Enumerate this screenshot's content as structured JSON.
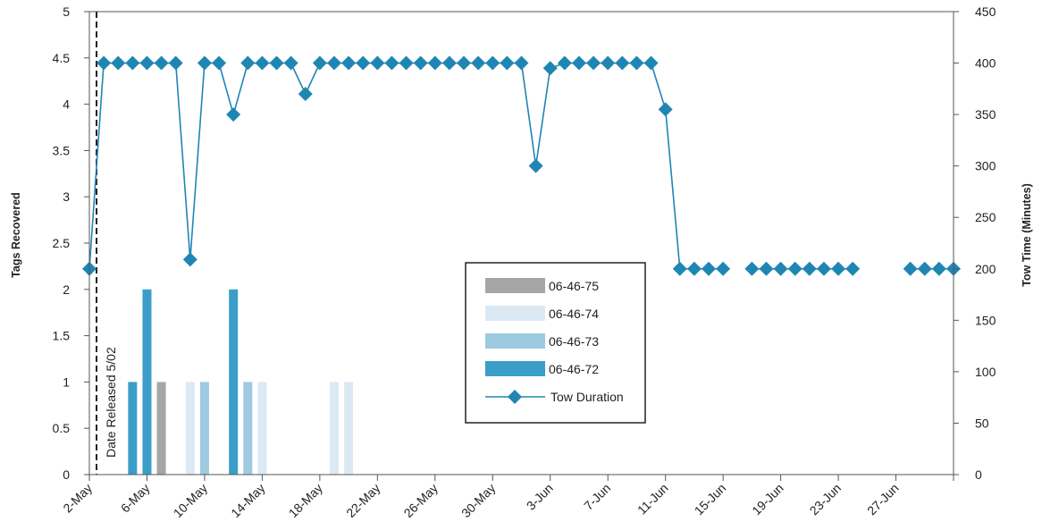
{
  "chart_data": {
    "type": "bar+line",
    "title": "",
    "ylabel_left": "Tags Recovered",
    "ylabel_right": "Tow Time (Minutes)",
    "ylim_left": [
      0,
      5
    ],
    "ylim_right": [
      0,
      450
    ],
    "yticks_left": [
      "0",
      "0.5",
      "1",
      "1.5",
      "2",
      "2.5",
      "3",
      "3.5",
      "4",
      "4.5",
      "5"
    ],
    "yticks_right": [
      "0",
      "50",
      "100",
      "150",
      "200",
      "250",
      "300",
      "350",
      "400",
      "450"
    ],
    "xlim": [
      "2-May",
      "1-Jul"
    ],
    "xticks": [
      "2-May",
      "6-May",
      "10-May",
      "14-May",
      "18-May",
      "22-May",
      "26-May",
      "30-May",
      "3-Jun",
      "7-Jun",
      "11-Jun",
      "15-Jun",
      "19-Jun",
      "23-Jun",
      "27-Jun"
    ],
    "annotation": {
      "text": "Date Released 5/02",
      "x": "2-May"
    },
    "legend_position": "center",
    "series": [
      {
        "name": "06-46-75",
        "type": "bar",
        "color": "#a6a6a6",
        "points": [
          {
            "x": "7-May",
            "y": 1
          }
        ]
      },
      {
        "name": "06-46-74",
        "type": "bar",
        "color": "#dbe9f5",
        "points": [
          {
            "x": "9-May",
            "y": 1
          },
          {
            "x": "14-May",
            "y": 1
          },
          {
            "x": "19-May",
            "y": 1
          },
          {
            "x": "20-May",
            "y": 1
          }
        ]
      },
      {
        "name": "06-46-73",
        "type": "bar",
        "color": "#9ecae1",
        "points": [
          {
            "x": "10-May",
            "y": 1
          },
          {
            "x": "13-May",
            "y": 1
          }
        ]
      },
      {
        "name": "06-46-72",
        "type": "bar",
        "color": "#3a9ec8",
        "points": [
          {
            "x": "5-May",
            "y": 1
          },
          {
            "x": "6-May",
            "y": 2
          },
          {
            "x": "12-May",
            "y": 2
          }
        ]
      },
      {
        "name": "Tow Duration",
        "type": "line",
        "axis": "right",
        "color": "#1f86b4",
        "points": [
          {
            "x": "2-May",
            "y": 200
          },
          {
            "x": "3-May",
            "y": 400
          },
          {
            "x": "4-May",
            "y": 400
          },
          {
            "x": "5-May",
            "y": 400
          },
          {
            "x": "6-May",
            "y": 400
          },
          {
            "x": "7-May",
            "y": 400
          },
          {
            "x": "8-May",
            "y": 400
          },
          {
            "x": "9-May",
            "y": 209
          },
          {
            "x": "10-May",
            "y": 400
          },
          {
            "x": "11-May",
            "y": 400
          },
          {
            "x": "12-May",
            "y": 350
          },
          {
            "x": "13-May",
            "y": 400
          },
          {
            "x": "14-May",
            "y": 400
          },
          {
            "x": "15-May",
            "y": 400
          },
          {
            "x": "16-May",
            "y": 400
          },
          {
            "x": "17-May",
            "y": 370
          },
          {
            "x": "18-May",
            "y": 400
          },
          {
            "x": "19-May",
            "y": 400
          },
          {
            "x": "20-May",
            "y": 400
          },
          {
            "x": "21-May",
            "y": 400
          },
          {
            "x": "22-May",
            "y": 400
          },
          {
            "x": "23-May",
            "y": 400
          },
          {
            "x": "24-May",
            "y": 400
          },
          {
            "x": "25-May",
            "y": 400
          },
          {
            "x": "26-May",
            "y": 400
          },
          {
            "x": "27-May",
            "y": 400
          },
          {
            "x": "28-May",
            "y": 400
          },
          {
            "x": "29-May",
            "y": 400
          },
          {
            "x": "30-May",
            "y": 400
          },
          {
            "x": "31-May",
            "y": 400
          },
          {
            "x": "1-Jun",
            "y": 400
          },
          {
            "x": "2-Jun",
            "y": 300
          },
          {
            "x": "3-Jun",
            "y": 395
          },
          {
            "x": "4-Jun",
            "y": 400
          },
          {
            "x": "5-Jun",
            "y": 400
          },
          {
            "x": "6-Jun",
            "y": 400
          },
          {
            "x": "7-Jun",
            "y": 400
          },
          {
            "x": "8-Jun",
            "y": 400
          },
          {
            "x": "9-Jun",
            "y": 400
          },
          {
            "x": "10-Jun",
            "y": 400
          },
          {
            "x": "11-Jun",
            "y": 355
          },
          {
            "x": "12-Jun",
            "y": 200
          },
          {
            "x": "13-Jun",
            "y": 200
          },
          {
            "x": "14-Jun",
            "y": 200
          },
          {
            "x": "15-Jun",
            "y": 200
          },
          {
            "x": "17-Jun",
            "y": 200
          },
          {
            "x": "18-Jun",
            "y": 200
          },
          {
            "x": "19-Jun",
            "y": 200
          },
          {
            "x": "20-Jun",
            "y": 200
          },
          {
            "x": "21-Jun",
            "y": 200
          },
          {
            "x": "22-Jun",
            "y": 200
          },
          {
            "x": "23-Jun",
            "y": 200
          },
          {
            "x": "24-Jun",
            "y": 200
          },
          {
            "x": "28-Jun",
            "y": 200
          },
          {
            "x": "29-Jun",
            "y": 200
          },
          {
            "x": "30-Jun",
            "y": 200
          },
          {
            "x": "1-Jul",
            "y": 200
          }
        ]
      }
    ]
  }
}
